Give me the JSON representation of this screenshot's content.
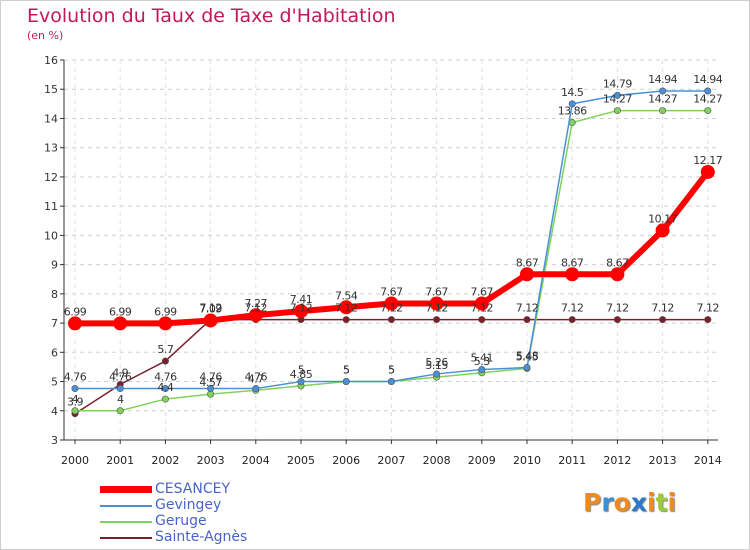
{
  "title": "Evolution du Taux de Taxe d'Habitation",
  "unit_label": "(en %)",
  "logo": {
    "text": "Proxiti",
    "letters": [
      "P",
      "r",
      "o",
      "x",
      "i",
      "t",
      "i"
    ],
    "colors": [
      "#f08a1c",
      "#3a8fd6",
      "#f08a1c",
      "#2e78c9",
      "#f08a1c",
      "#9ccb3c",
      "#f08a1c"
    ]
  },
  "chart_data": {
    "type": "line",
    "x": [
      "2000",
      "2001",
      "2002",
      "2003",
      "2004",
      "2005",
      "2006",
      "2007",
      "2008",
      "2009",
      "2010",
      "2011",
      "2012",
      "2013",
      "2014"
    ],
    "ylim": [
      3,
      16
    ],
    "yticks": [
      3,
      4,
      5,
      6,
      7,
      8,
      9,
      10,
      11,
      12,
      13,
      14,
      15,
      16
    ],
    "grid": true,
    "legend_position": "bottom-left",
    "series": [
      {
        "name": "Sainte-Agnès",
        "color": "#7a1f2b",
        "values": [
          3.9,
          4.9,
          5.7,
          7.12,
          7.12,
          7.12,
          7.12,
          7.12,
          7.12,
          7.12,
          7.12,
          7.12,
          7.12,
          7.12,
          7.12
        ],
        "labels": [
          "3.9",
          "4.9",
          "5.7",
          "7.12",
          "7.12",
          "7.12",
          "7.12",
          "7.12",
          "7.12",
          "7.12",
          "7.12",
          "7.12",
          "7.12",
          "7.12",
          "7.12"
        ]
      },
      {
        "name": "Geruge",
        "color": "#7fd35a",
        "values": [
          4,
          4,
          4.4,
          4.57,
          4.7,
          4.85,
          5,
          5,
          5.15,
          5.3,
          5.45,
          13.86,
          14.27,
          14.27,
          14.27
        ],
        "labels": [
          "4",
          "4",
          "4.4",
          "4.57",
          "4.7",
          "4.85",
          "5",
          "5",
          "5.15",
          "5.3",
          "5.45",
          "13.86",
          "14.27",
          "14.27",
          "14.27"
        ]
      },
      {
        "name": "Gevingey",
        "color": "#4a90d9",
        "values": [
          4.76,
          4.76,
          4.76,
          4.76,
          4.76,
          5,
          5,
          5,
          5.26,
          5.41,
          5.48,
          14.5,
          14.79,
          14.94,
          14.94
        ],
        "labels": [
          "4.76",
          "4.76",
          "4.76",
          "4.76",
          "4.76",
          "5",
          "5",
          "5",
          "5.26",
          "5.41",
          "5.48",
          "14.5",
          "14.79",
          "14.94",
          "14.94"
        ]
      },
      {
        "name": "CESANCEY",
        "color": "#ff0000",
        "values": [
          6.99,
          6.99,
          6.99,
          7.09,
          7.27,
          7.41,
          7.54,
          7.67,
          7.67,
          7.67,
          8.67,
          8.67,
          8.67,
          10.17,
          12.17
        ],
        "labels": [
          "6.99",
          "6.99",
          "6.99",
          "7.09",
          "7.27",
          "7.41",
          "7.54",
          "7.67",
          "7.67",
          "7.67",
          "8.67",
          "8.67",
          "8.67",
          "10.17",
          "12.17"
        ]
      }
    ],
    "legend_order": [
      "CESANCEY",
      "Gevingey",
      "Geruge",
      "Sainte-Agnès"
    ]
  }
}
